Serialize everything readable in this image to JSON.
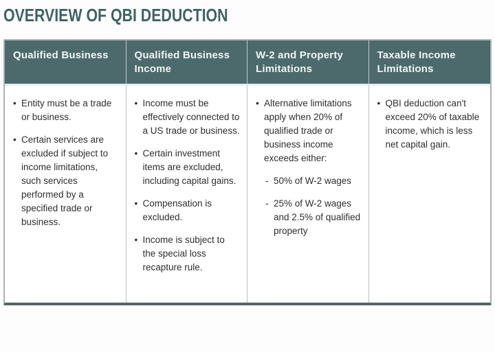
{
  "title": "OVERVIEW OF QBI DEDUCTION",
  "colors": {
    "title_text": "#3d6365",
    "header_background": "#4c6a6c",
    "header_text": "#f2f5f5",
    "body_text": "#2e2e2e",
    "border_outer": "#aab2b2",
    "border_inner": "#b8bfbf",
    "border_bottom": "#5a6466"
  },
  "table": {
    "columns": [
      {
        "header": "Qualified Business",
        "items": [
          {
            "level": 1,
            "text": "Entity must be a trade or business."
          },
          {
            "level": 1,
            "text": "Certain services are excluded if subject to income limitations, such services performed by a specified trade or business."
          }
        ]
      },
      {
        "header": "Qualified Business Income",
        "items": [
          {
            "level": 1,
            "text": "Income must be effectively connected to a US trade or business."
          },
          {
            "level": 1,
            "text": "Certain investment items are excluded, including capital gains."
          },
          {
            "level": 1,
            "text": "Compensation is excluded."
          },
          {
            "level": 1,
            "text": "Income is subject to the special loss recapture rule."
          }
        ]
      },
      {
        "header": "W-2 and Property Limitations",
        "items": [
          {
            "level": 1,
            "text": "Alternative limitations apply when 20% of qualified trade or business income exceeds either:"
          },
          {
            "level": 2,
            "text": "50% of W-2 wages"
          },
          {
            "level": 2,
            "text": "25% of W-2 wages and 2.5% of qualified property"
          }
        ]
      },
      {
        "header": "Taxable Income Limitations",
        "items": [
          {
            "level": 1,
            "text": "QBI deduction can't exceed 20% of taxable income, which is less net capital gain."
          }
        ]
      }
    ]
  }
}
